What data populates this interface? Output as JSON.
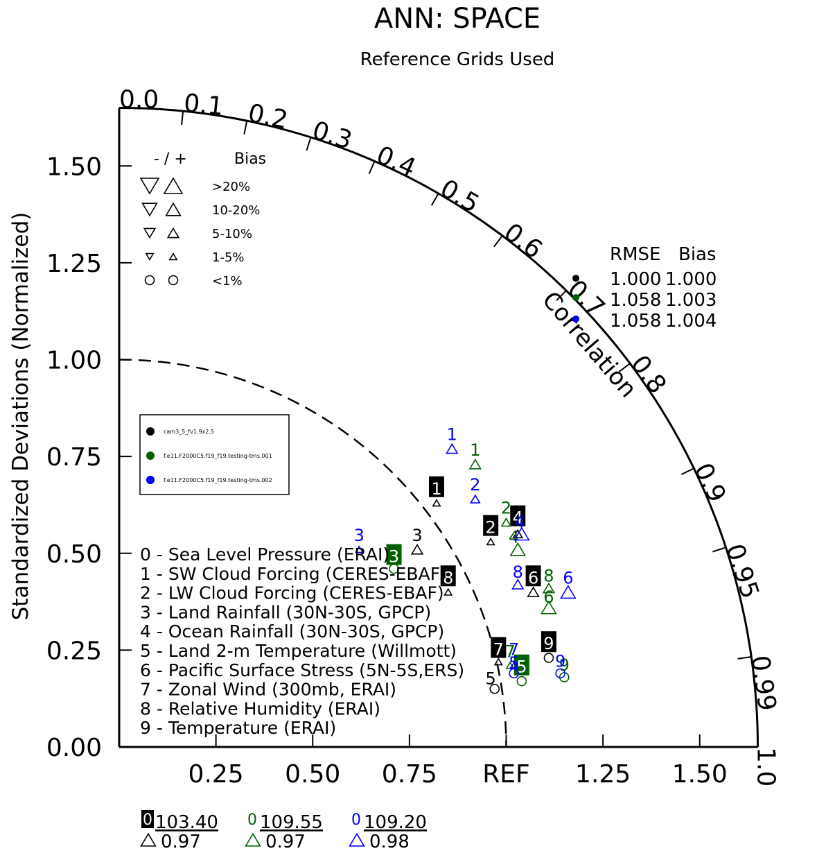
{
  "chart_data": {
    "type": "scatter",
    "title": "ANN: SPACE",
    "subtitle": "Reference Grids Used",
    "ylabel": "Standardized Deviations (Normalized)",
    "correlation_label": "Correlation",
    "reference_label": "REF",
    "colors": {
      "model": "#000000",
      "case1": "#006000",
      "case2": "#0000ff"
    },
    "ylim": [
      0,
      1.65
    ],
    "x_tick_labels": [
      {
        "v": 0.25,
        "t": "0.25"
      },
      {
        "v": 0.5,
        "t": "0.50"
      },
      {
        "v": 0.75,
        "t": "0.75"
      },
      {
        "v": 1.0,
        "t": "REF"
      },
      {
        "v": 1.25,
        "t": "1.25"
      },
      {
        "v": 1.5,
        "t": "1.50"
      }
    ],
    "y_tick_labels": [
      {
        "v": 0.0,
        "t": "0.00"
      },
      {
        "v": 0.25,
        "t": "0.25"
      },
      {
        "v": 0.5,
        "t": "0.50"
      },
      {
        "v": 0.75,
        "t": "0.75"
      },
      {
        "v": 1.0,
        "t": "1.00"
      },
      {
        "v": 1.25,
        "t": "1.25"
      },
      {
        "v": 1.5,
        "t": "1.50"
      }
    ],
    "correlation_ticks": [
      {
        "c": 0.0,
        "t": "0.0"
      },
      {
        "c": 0.1,
        "t": "0.1"
      },
      {
        "c": 0.2,
        "t": "0.2"
      },
      {
        "c": 0.3,
        "t": "0.3"
      },
      {
        "c": 0.4,
        "t": "0.4"
      },
      {
        "c": 0.5,
        "t": "0.5"
      },
      {
        "c": 0.6,
        "t": "0.6"
      },
      {
        "c": 0.7,
        "t": "0.7"
      },
      {
        "c": 0.8,
        "t": "0.8"
      },
      {
        "c": 0.9,
        "t": "0.9"
      },
      {
        "c": 0.95,
        "t": "0.95"
      },
      {
        "c": 0.99,
        "t": "0.99"
      },
      {
        "c": 1.0,
        "t": "1.0"
      }
    ],
    "bias_legend": {
      "header_sign": "- / +",
      "header_bias": "Bias",
      "rows": [
        {
          "label": ">20%",
          "shape": "triangle",
          "size": 1.0
        },
        {
          "label": "10-20%",
          "shape": "triangle",
          "size": 0.8
        },
        {
          "label": "5-10%",
          "shape": "triangle",
          "size": 0.6
        },
        {
          "label": "1-5%",
          "shape": "triangle",
          "size": 0.4
        },
        {
          "label": "<1%",
          "shape": "circle",
          "size": 0.5
        }
      ]
    },
    "rmse_table": {
      "header_rmse": "RMSE",
      "header_bias": "Bias",
      "rows": [
        {
          "rmse": "1.000",
          "bias": "1.000",
          "series": "model"
        },
        {
          "rmse": "1.058",
          "bias": "1.003",
          "series": "case1"
        },
        {
          "rmse": "1.058",
          "bias": "1.004",
          "series": "case2"
        }
      ]
    },
    "series": [
      {
        "name": "cam3_5_fv1.9x2.5",
        "key": "model"
      },
      {
        "name": "f.e11.F2000C5.f19_f19.testing-tms.001",
        "key": "case1"
      },
      {
        "name": "f.e11.F2000C5.f19_f19.testing-tms.002",
        "key": "case2"
      }
    ],
    "variables": [
      "0 - Sea Level Pressure (ERAI)",
      "1 - SW Cloud Forcing (CERES-EBAF)",
      "2 - LW Cloud Forcing (CERES-EBAF)",
      "3 - Land Rainfall (30N-30S, GPCP)",
      "4 - Ocean Rainfall (30N-30S, GPCP)",
      "5 - Land 2-m Temperature (Willmott)",
      "6 - Pacific Surface Stress (5N-5S,ERS)",
      "7 - Zonal Wind (300mb, ERAI)",
      "8 - Relative Humidity (ERAI)",
      "9 - Temperature (ERAI)"
    ],
    "footer": [
      {
        "series": "model",
        "id": "0",
        "value": "103.40",
        "score": "0.97",
        "boxed": true
      },
      {
        "series": "case1",
        "id": "0",
        "value": "109.55",
        "score": "0.97",
        "boxed": false
      },
      {
        "series": "case2",
        "id": "0",
        "value": "109.20",
        "score": "0.98",
        "boxed": false
      }
    ],
    "points": [
      {
        "s": "model",
        "id": "1",
        "x": 0.82,
        "y": 0.63,
        "m": "tri",
        "sz": 0.4,
        "boxed": true,
        "lx": 0.82,
        "ly": 0.67
      },
      {
        "s": "model",
        "id": "2",
        "x": 0.96,
        "y": 0.53,
        "m": "tri",
        "sz": 0.4,
        "boxed": true,
        "lx": 0.96,
        "ly": 0.57
      },
      {
        "s": "model",
        "id": "3",
        "x": 0.77,
        "y": 0.51,
        "m": "tri",
        "sz": 0.6,
        "boxed": false,
        "lx": 0.77,
        "ly": 0.55
      },
      {
        "s": "model",
        "id": "4",
        "x": 1.03,
        "y": 0.55,
        "m": "tri",
        "sz": 0.5,
        "boxed": true,
        "lx": 1.03,
        "ly": 0.595
      },
      {
        "s": "model",
        "id": "5",
        "x": 0.97,
        "y": 0.15,
        "m": "circle",
        "sz": 0.5,
        "boxed": false,
        "lx": 0.96,
        "ly": 0.18
      },
      {
        "s": "model",
        "id": "6",
        "x": 1.07,
        "y": 0.4,
        "m": "tri",
        "sz": 0.6,
        "boxed": true,
        "lx": 1.07,
        "ly": 0.44
      },
      {
        "s": "model",
        "id": "7",
        "x": 0.98,
        "y": 0.22,
        "m": "tri",
        "sz": 0.4,
        "boxed": true,
        "lx": 0.98,
        "ly": 0.255
      },
      {
        "s": "model",
        "id": "8",
        "x": 0.85,
        "y": 0.4,
        "m": "tri",
        "sz": 0.4,
        "boxed": true,
        "lx": 0.85,
        "ly": 0.44
      },
      {
        "s": "model",
        "id": "9",
        "x": 1.11,
        "y": 0.23,
        "m": "circle",
        "sz": 0.5,
        "boxed": true,
        "lx": 1.11,
        "ly": 0.27
      },
      {
        "s": "case1",
        "id": "1",
        "x": 0.92,
        "y": 0.73,
        "m": "tri",
        "sz": 0.6,
        "boxed": false,
        "lx": 0.92,
        "ly": 0.77
      },
      {
        "s": "case1",
        "id": "2",
        "x": 1.0,
        "y": 0.58,
        "m": "tri",
        "sz": 0.5,
        "boxed": false,
        "lx": 1.0,
        "ly": 0.62
      },
      {
        "s": "case1",
        "id": "3",
        "x": 0.71,
        "y": 0.46,
        "m": "circle",
        "sz": 0.5,
        "boxed": true,
        "lx": 0.71,
        "ly": 0.495
      },
      {
        "s": "case1",
        "id": "4",
        "x": 1.03,
        "y": 0.51,
        "m": "tri",
        "sz": 0.8,
        "boxed": false,
        "lx": 1.02,
        "ly": 0.545
      },
      {
        "s": "case1",
        "id": "5",
        "x": 1.04,
        "y": 0.17,
        "m": "circle",
        "sz": 0.5,
        "boxed": true,
        "lx": 1.04,
        "ly": 0.21
      },
      {
        "s": "case1",
        "id": "6",
        "x": 1.11,
        "y": 0.36,
        "m": "tri",
        "sz": 0.8,
        "boxed": false,
        "lx": 1.11,
        "ly": 0.39
      },
      {
        "s": "case1",
        "id": "7",
        "x": 1.01,
        "y": 0.21,
        "m": "tri",
        "sz": 0.4,
        "boxed": false,
        "lx": 1.01,
        "ly": 0.25
      },
      {
        "s": "case1",
        "id": "8",
        "x": 1.11,
        "y": 0.41,
        "m": "tri",
        "sz": 0.6,
        "boxed": false,
        "lx": 1.11,
        "ly": 0.445
      },
      {
        "s": "case1",
        "id": "9",
        "x": 1.15,
        "y": 0.18,
        "m": "circle",
        "sz": 0.5,
        "boxed": false,
        "lx": 1.15,
        "ly": 0.215
      },
      {
        "s": "case2",
        "id": "1",
        "x": 0.86,
        "y": 0.77,
        "m": "tri",
        "sz": 0.6,
        "boxed": false,
        "lx": 0.86,
        "ly": 0.81
      },
      {
        "s": "case2",
        "id": "2",
        "x": 0.92,
        "y": 0.64,
        "m": "tri",
        "sz": 0.5,
        "boxed": false,
        "lx": 0.92,
        "ly": 0.68
      },
      {
        "s": "case2",
        "id": "3",
        "x": 0.62,
        "y": 0.51,
        "m": "tri",
        "sz": 0.4,
        "boxed": false,
        "lx": 0.62,
        "ly": 0.55
      },
      {
        "s": "case2",
        "id": "4",
        "x": 1.04,
        "y": 0.55,
        "m": "tri",
        "sz": 0.8,
        "boxed": false,
        "lx": 1.035,
        "ly": 0.585
      },
      {
        "s": "case2",
        "id": "5",
        "x": 1.02,
        "y": 0.19,
        "m": "circle",
        "sz": 0.5,
        "boxed": false,
        "lx": 1.02,
        "ly": 0.22
      },
      {
        "s": "case2",
        "id": "6",
        "x": 1.16,
        "y": 0.4,
        "m": "tri",
        "sz": 0.8,
        "boxed": false,
        "lx": 1.16,
        "ly": 0.44
      },
      {
        "s": "case2",
        "id": "7",
        "x": 1.02,
        "y": 0.21,
        "m": "tri",
        "sz": 0.4,
        "boxed": false,
        "lx": 1.02,
        "ly": 0.255
      },
      {
        "s": "case2",
        "id": "8",
        "x": 1.03,
        "y": 0.42,
        "m": "tri",
        "sz": 0.6,
        "boxed": false,
        "lx": 1.03,
        "ly": 0.455
      },
      {
        "s": "case2",
        "id": "9",
        "x": 1.14,
        "y": 0.19,
        "m": "circle",
        "sz": 0.5,
        "boxed": false,
        "lx": 1.14,
        "ly": 0.225
      }
    ],
    "summary_dots": [
      {
        "s": "model",
        "x": 1.18,
        "y": 1.21
      },
      {
        "s": "case1",
        "x": 1.18,
        "y": 1.16
      },
      {
        "s": "case2",
        "x": 1.18,
        "y": 1.105
      }
    ]
  }
}
